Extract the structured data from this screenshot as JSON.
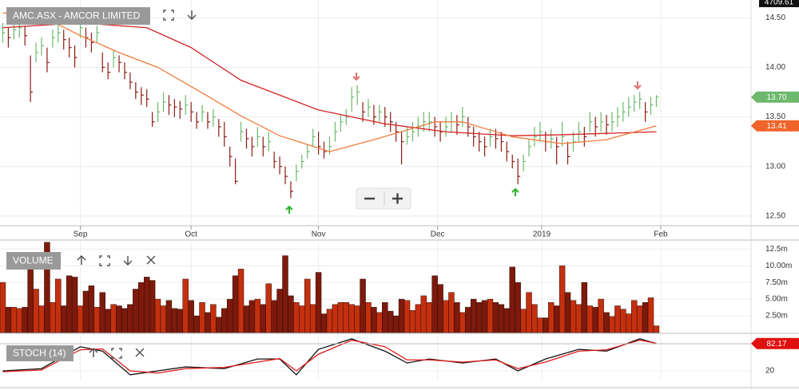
{
  "chart_data": [
    {
      "type": "ohlc",
      "title": "AMC.ASX - AMCOR LIMITED",
      "index_tag": "4709.61",
      "up_color": "#6cb86c",
      "down_color": "#8b1a14",
      "xlim": [
        -0.5,
        135.1
      ],
      "ylim": [
        12.41,
        14.68
      ],
      "xticks": [
        {
          "value": 14,
          "label": "Sep"
        },
        {
          "value": 34,
          "label": "Oct"
        },
        {
          "value": 57,
          "label": "Nov"
        },
        {
          "value": 78.5,
          "label": "Dec"
        },
        {
          "value": 97.3,
          "label": "2019"
        },
        {
          "value": 118.8,
          "label": "Feb"
        }
      ],
      "yticks": [
        {
          "value": 14.5,
          "label": "14.50"
        },
        {
          "value": 14,
          "label": "14.00"
        },
        {
          "value": 13.5,
          "label": "13.50"
        },
        {
          "value": 13,
          "label": "13.00"
        },
        {
          "value": 12.5,
          "label": "12.50"
        }
      ],
      "grid": true,
      "x": [
        0,
        1,
        2,
        3,
        4,
        5,
        6,
        7,
        8,
        9,
        10,
        11,
        12,
        13,
        14,
        15,
        16,
        17,
        18,
        19,
        20,
        21,
        22,
        23,
        24,
        25,
        26,
        27,
        28,
        29,
        30,
        31,
        32,
        33,
        34,
        35,
        36,
        37,
        38,
        39,
        40,
        41,
        42,
        43,
        44,
        45,
        46,
        47,
        48,
        49,
        50,
        51,
        52,
        53,
        54,
        55,
        56,
        57,
        58,
        59,
        60,
        61,
        62,
        63,
        64,
        65,
        66,
        67,
        68,
        69,
        70,
        71,
        72,
        73,
        74,
        75,
        76,
        77,
        78,
        79,
        80,
        81,
        82,
        83,
        84,
        85,
        86,
        87,
        88,
        89,
        90,
        91,
        92,
        93,
        94,
        95,
        96,
        97,
        98,
        99,
        100,
        101,
        102,
        103,
        104,
        105,
        106,
        107,
        108,
        109,
        110,
        111,
        112,
        113,
        114,
        115,
        116,
        117,
        118
      ],
      "high": [
        14.45,
        14.4,
        14.45,
        14.48,
        14.42,
        14.12,
        14.25,
        14.3,
        14.2,
        14.38,
        14.45,
        14.38,
        14.3,
        14.22,
        14.48,
        14.4,
        14.35,
        14.42,
        14.15,
        14.05,
        14.18,
        14.12,
        14.05,
        13.95,
        13.85,
        13.8,
        13.78,
        13.55,
        13.65,
        13.75,
        13.72,
        13.68,
        13.66,
        13.72,
        13.65,
        13.55,
        13.62,
        13.55,
        13.58,
        13.48,
        13.45,
        13.2,
        13.08,
        13.45,
        13.38,
        13.3,
        13.4,
        13.3,
        13.35,
        13.15,
        13.1,
        13.0,
        12.85,
        13.02,
        13.12,
        13.22,
        13.38,
        13.35,
        13.25,
        13.3,
        13.45,
        13.52,
        13.58,
        13.8,
        13.82,
        13.65,
        13.68,
        13.62,
        13.62,
        13.6,
        13.55,
        13.45,
        13.35,
        13.4,
        13.45,
        13.5,
        13.55,
        13.55,
        13.5,
        13.45,
        13.5,
        13.55,
        13.52,
        13.6,
        13.5,
        13.4,
        13.35,
        13.3,
        13.38,
        13.38,
        13.35,
        13.25,
        13.12,
        13.08,
        13.12,
        13.28,
        13.4,
        13.45,
        13.35,
        13.38,
        13.3,
        13.45,
        13.25,
        13.35,
        13.45,
        13.4,
        13.55,
        13.5,
        13.55,
        13.52,
        13.55,
        13.6,
        13.65,
        13.7,
        13.72,
        13.75,
        13.65,
        13.7,
        13.72
      ],
      "low": [
        14.25,
        14.2,
        14.28,
        14.3,
        14.22,
        13.65,
        14.05,
        14.12,
        13.95,
        14.2,
        14.25,
        14.18,
        14.1,
        14.0,
        14.3,
        14.2,
        14.15,
        14.25,
        13.95,
        13.88,
        14.0,
        13.95,
        13.88,
        13.78,
        13.68,
        13.62,
        13.6,
        13.4,
        13.45,
        13.55,
        13.52,
        13.5,
        13.48,
        13.52,
        13.45,
        13.38,
        13.45,
        13.38,
        13.4,
        13.3,
        13.2,
        13.0,
        12.82,
        13.25,
        13.18,
        13.1,
        13.2,
        13.1,
        13.15,
        12.98,
        12.92,
        12.82,
        12.68,
        12.85,
        12.98,
        13.08,
        13.2,
        13.12,
        13.08,
        13.12,
        13.25,
        13.35,
        13.42,
        13.55,
        13.62,
        13.45,
        13.5,
        13.42,
        13.45,
        13.4,
        13.35,
        13.25,
        13.02,
        13.22,
        13.25,
        13.3,
        13.35,
        13.35,
        13.3,
        13.25,
        13.3,
        13.35,
        13.32,
        13.4,
        13.3,
        13.2,
        13.15,
        13.1,
        13.2,
        13.18,
        13.15,
        13.05,
        12.98,
        12.82,
        12.95,
        13.1,
        13.2,
        13.25,
        13.15,
        13.18,
        13.02,
        13.2,
        13.02,
        13.15,
        13.25,
        13.2,
        13.35,
        13.3,
        13.35,
        13.32,
        13.35,
        13.4,
        13.45,
        13.5,
        13.55,
        13.58,
        13.45,
        13.52,
        13.6
      ],
      "close": [
        14.35,
        14.3,
        14.38,
        14.4,
        14.32,
        13.75,
        14.15,
        14.22,
        14.05,
        14.3,
        14.35,
        14.28,
        14.2,
        14.1,
        14.4,
        14.3,
        14.25,
        14.35,
        14.0,
        13.95,
        14.1,
        14.05,
        13.95,
        13.85,
        13.75,
        13.72,
        13.68,
        13.45,
        13.55,
        13.65,
        13.62,
        13.6,
        13.58,
        13.62,
        13.55,
        13.45,
        13.55,
        13.45,
        13.5,
        13.4,
        13.3,
        13.1,
        12.85,
        13.35,
        13.28,
        13.2,
        13.3,
        13.2,
        13.25,
        13.05,
        13.0,
        12.9,
        12.75,
        12.95,
        13.05,
        13.15,
        13.3,
        13.2,
        13.15,
        13.2,
        13.35,
        13.45,
        13.5,
        13.7,
        13.75,
        13.55,
        13.6,
        13.5,
        13.55,
        13.5,
        13.45,
        13.35,
        13.25,
        13.3,
        13.35,
        13.4,
        13.45,
        13.45,
        13.4,
        13.35,
        13.4,
        13.45,
        13.42,
        13.5,
        13.4,
        13.3,
        13.25,
        13.2,
        13.3,
        13.28,
        13.25,
        13.15,
        13.05,
        12.9,
        13.05,
        13.2,
        13.3,
        13.35,
        13.25,
        13.28,
        13.2,
        13.3,
        13.1,
        13.25,
        13.35,
        13.3,
        13.45,
        13.4,
        13.45,
        13.42,
        13.45,
        13.5,
        13.55,
        13.6,
        13.65,
        13.68,
        13.55,
        13.62,
        13.7
      ],
      "close_tag": {
        "label": "13.70",
        "color": "#6cb86c"
      },
      "series": [
        {
          "color": "#d42222",
          "x": [
            0,
            14,
            26,
            34,
            43,
            57,
            69,
            80,
            92,
            101,
            118
          ],
          "values": [
            14.4,
            14.45,
            14.4,
            14.2,
            13.87,
            13.57,
            13.43,
            13.35,
            13.31,
            13.32,
            13.35
          ]
        },
        {
          "color": "#f07a3a",
          "x": [
            0,
            7,
            14,
            21,
            28,
            37,
            43,
            50,
            59,
            67,
            78,
            83,
            92,
            101,
            109,
            118
          ],
          "values": [
            14.55,
            14.52,
            14.32,
            14.15,
            14.0,
            13.71,
            13.51,
            13.31,
            13.15,
            13.27,
            13.45,
            13.45,
            13.3,
            13.23,
            13.27,
            13.41
          ],
          "tag": {
            "label": "13.41",
            "color": "#f0642a"
          }
        }
      ]
    },
    {
      "type": "bar",
      "title": "VOLUME",
      "up_color": "#c4300e",
      "down_color": "#7d1a0c",
      "ylim": [
        0,
        13.6
      ],
      "yticks": [
        {
          "value": 12.5,
          "label": "12.5m"
        },
        {
          "value": 10,
          "label": "10.00m"
        },
        {
          "value": 7.5,
          "label": "7.50m"
        },
        {
          "value": 5,
          "label": "5.00m"
        },
        {
          "value": 2.5,
          "label": "2.50m"
        }
      ],
      "values": [
        7.5,
        3.8,
        3.8,
        3.6,
        3.8,
        10.0,
        6.5,
        4.0,
        13.5,
        4.5,
        8.0,
        4.0,
        8.5,
        8.3,
        4.0,
        6.2,
        7.0,
        3.8,
        6.0,
        3.5,
        4.2,
        4.0,
        3.6,
        4.2,
        6.5,
        7.5,
        8.3,
        7.8,
        5.0,
        4.0,
        4.8,
        3.6,
        3.5,
        8.0,
        4.8,
        2.5,
        4.5,
        3.0,
        4.2,
        2.3,
        3.6,
        5.0,
        8.5,
        9.5,
        4.0,
        4.8,
        5.0,
        4.2,
        7.3,
        4.8,
        6.5,
        11.5,
        5.5,
        4.5,
        4.0,
        8.0,
        4.2,
        9.0,
        2.8,
        3.5,
        4.2,
        4.5,
        4.5,
        4.2,
        4.0,
        8.0,
        4.5,
        3.8,
        3.0,
        4.5,
        3.2,
        2.5,
        5.0,
        4.8,
        3.3,
        4.2,
        5.5,
        4.5,
        8.5,
        7.2,
        4.8,
        6.0,
        4.5,
        3.0,
        3.8,
        5.0,
        4.5,
        4.8,
        5.0,
        4.5,
        4.2,
        3.6,
        9.8,
        7.5,
        3.5,
        6.0,
        4.2,
        2.2,
        2.2,
        4.5,
        4.0,
        10.0,
        6.0,
        4.8,
        4.2,
        7.5,
        4.0,
        3.8,
        5.0,
        3.0,
        2.4,
        4.0,
        3.5,
        2.8,
        4.8,
        4.0,
        4.5,
        5.2,
        1.0
      ]
    },
    {
      "type": "line",
      "title": "STOCH (14)",
      "ylim": [
        0,
        100
      ],
      "yticks": [
        20
      ],
      "tag_color": "#e01010",
      "series": [
        {
          "color": "#111111",
          "x": [
            0,
            7,
            14,
            18,
            23,
            28,
            33,
            40,
            46,
            50,
            53,
            57,
            63,
            69,
            73,
            77,
            83,
            89,
            93,
            98,
            104,
            109,
            115,
            118
          ],
          "values": [
            20,
            25,
            75,
            65,
            11,
            20,
            29,
            25,
            47,
            47,
            11,
            69,
            93,
            65,
            38,
            47,
            38,
            47,
            20,
            47,
            69,
            65,
            93,
            82.17
          ]
        },
        {
          "color": "#e01818",
          "x": [
            0,
            7,
            14,
            18,
            23,
            28,
            33,
            40,
            46,
            50,
            53,
            57,
            63,
            69,
            73,
            77,
            83,
            89,
            93,
            98,
            104,
            109,
            115,
            118
          ],
          "values": [
            18,
            22,
            68,
            70,
            20,
            15,
            25,
            28,
            40,
            48,
            20,
            58,
            90,
            75,
            45,
            45,
            40,
            45,
            25,
            40,
            65,
            68,
            90,
            83
          ]
        }
      ]
    }
  ]
}
